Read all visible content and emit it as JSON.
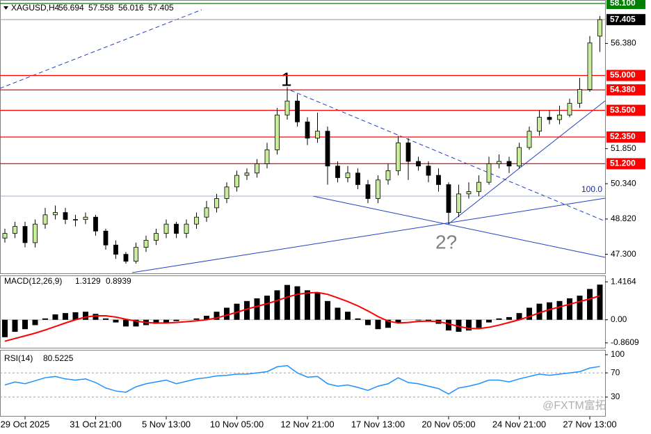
{
  "chart_data": [
    {
      "type": "candlestick",
      "title": "XAGUSD,H4",
      "open": [
        48.0,
        48.2,
        48.5,
        47.8,
        48.6,
        49.0,
        49.1,
        48.8,
        48.8,
        48.9,
        48.3,
        47.7,
        47.3,
        47.0,
        47.6,
        47.9,
        48.2,
        48.6,
        48.2,
        48.6,
        48.9,
        49.3,
        49.7,
        50.2,
        50.7,
        50.8,
        51.2,
        51.8,
        53.3,
        53.9,
        53.0,
        52.3,
        52.6,
        51.1,
        50.6,
        50.8,
        50.3,
        49.7,
        50.5,
        50.9,
        52.1,
        51.3,
        51.1,
        50.7,
        50.3,
        49.1,
        49.9,
        50.0,
        50.4,
        51.2,
        51.3,
        51.1,
        51.9,
        52.6,
        53.2,
        53.1,
        53.3,
        53.8,
        54.4,
        56.694
      ],
      "high": [
        48.4,
        48.7,
        48.7,
        48.8,
        49.3,
        49.4,
        49.3,
        49.0,
        49.1,
        49.0,
        48.4,
        47.9,
        47.4,
        47.8,
        48.1,
        48.4,
        48.8,
        48.7,
        48.8,
        49.1,
        49.6,
        49.9,
        50.4,
        50.9,
        51.0,
        51.4,
        52.1,
        53.6,
        54.5,
        54.2,
        53.2,
        53.4,
        52.8,
        51.3,
        51.1,
        51.0,
        50.5,
        50.7,
        51.2,
        52.4,
        52.3,
        51.5,
        51.3,
        51.0,
        50.4,
        50.3,
        50.4,
        50.7,
        51.5,
        51.6,
        51.5,
        52.1,
        52.8,
        53.5,
        53.5,
        53.7,
        54.0,
        54.9,
        56.7,
        57.558
      ],
      "low": [
        47.8,
        48.0,
        47.6,
        47.6,
        48.4,
        48.8,
        48.6,
        48.5,
        48.6,
        48.1,
        47.5,
        47.1,
        46.9,
        46.9,
        47.4,
        47.7,
        48.0,
        48.0,
        48.0,
        48.4,
        48.7,
        49.1,
        49.5,
        50.0,
        50.5,
        50.6,
        51.0,
        51.6,
        53.1,
        52.8,
        52.0,
        52.1,
        50.3,
        50.4,
        50.4,
        50.1,
        49.5,
        49.5,
        50.3,
        50.7,
        50.5,
        50.9,
        50.4,
        50.0,
        48.6,
        48.9,
        49.7,
        49.8,
        50.3,
        51.0,
        50.8,
        51.0,
        51.8,
        52.4,
        52.9,
        52.9,
        53.2,
        53.6,
        54.3,
        56.016
      ],
      "close": [
        48.2,
        48.5,
        47.8,
        48.6,
        49.0,
        49.1,
        48.8,
        48.8,
        48.9,
        48.3,
        47.7,
        47.3,
        47.0,
        47.6,
        47.9,
        48.2,
        48.6,
        48.2,
        48.6,
        48.9,
        49.3,
        49.7,
        50.2,
        50.7,
        50.8,
        51.2,
        51.8,
        53.3,
        53.9,
        53.0,
        52.3,
        52.6,
        51.1,
        50.6,
        50.8,
        50.3,
        49.7,
        50.5,
        50.9,
        52.1,
        51.3,
        51.1,
        50.7,
        50.3,
        49.1,
        49.9,
        50.0,
        50.4,
        51.2,
        51.3,
        51.1,
        51.9,
        52.6,
        53.2,
        53.1,
        53.3,
        53.8,
        54.4,
        56.4,
        57.405
      ],
      "up_color": "#c9ec9c",
      "down_color": "#000000",
      "ylim": [
        46.48,
        58.16
      ],
      "yticks": [
        {
          "value": 56.38,
          "label": "56.380"
        },
        {
          "value": 51.85,
          "label": "51.850"
        },
        {
          "value": 50.34,
          "label": "50.340"
        },
        {
          "value": 48.82,
          "label": "48.820"
        },
        {
          "value": 47.3,
          "label": "47.300"
        }
      ],
      "levels": [
        {
          "value": 58.1,
          "label": "58.100",
          "color": "#008000",
          "line_color": "#008000"
        },
        {
          "value": 57.405,
          "label": "57.405",
          "color": "#000000",
          "line_color": "#a0a0a0"
        },
        {
          "value": 55,
          "label": "55.000",
          "color": "#ff0000",
          "line_color": "#ff0000"
        },
        {
          "value": 54.38,
          "label": "54.380",
          "color": "#ff0000",
          "line_color": "#ff0000"
        },
        {
          "value": 53.5,
          "label": "53.500",
          "color": "#ff0000",
          "line_color": "#ff0000"
        },
        {
          "value": 52.35,
          "label": "52.350",
          "color": "#ff0000",
          "line_color": "#ff0000"
        },
        {
          "value": 51.2,
          "label": "51.200",
          "color": "#ff0000",
          "line_color": "#ff0000"
        }
      ],
      "annotations": [
        "1",
        "2?",
        "100.0"
      ]
    },
    {
      "type": "macd",
      "title": "MACD(12,26,9)",
      "histogram": [
        -0.65,
        -0.45,
        -0.35,
        -0.2,
        0.05,
        0.2,
        0.25,
        0.28,
        0.3,
        0.22,
        0.05,
        -0.1,
        -0.25,
        -0.25,
        -0.2,
        -0.15,
        -0.1,
        -0.05,
        0.0,
        0.05,
        0.15,
        0.3,
        0.45,
        0.6,
        0.7,
        0.8,
        0.9,
        1.1,
        1.3,
        1.25,
        1.1,
        1.0,
        0.7,
        0.45,
        0.3,
        0.05,
        -0.2,
        -0.35,
        -0.3,
        -0.1,
        0.0,
        -0.02,
        -0.05,
        -0.15,
        -0.4,
        -0.45,
        -0.4,
        -0.3,
        -0.1,
        0.05,
        0.1,
        0.25,
        0.45,
        0.6,
        0.65,
        0.7,
        0.8,
        0.9,
        1.15,
        1.3129
      ],
      "signal": [
        -0.8,
        -0.7,
        -0.6,
        -0.5,
        -0.38,
        -0.25,
        -0.12,
        0.0,
        0.1,
        0.15,
        0.15,
        0.1,
        0.02,
        -0.05,
        -0.1,
        -0.12,
        -0.12,
        -0.1,
        -0.07,
        -0.04,
        0.0,
        0.07,
        0.17,
        0.28,
        0.4,
        0.5,
        0.6,
        0.72,
        0.85,
        0.95,
        1.0,
        1.02,
        0.95,
        0.82,
        0.68,
        0.52,
        0.33,
        0.12,
        -0.05,
        -0.12,
        -0.1,
        -0.06,
        -0.05,
        -0.07,
        -0.15,
        -0.25,
        -0.32,
        -0.33,
        -0.28,
        -0.2,
        -0.1,
        0.0,
        0.12,
        0.26,
        0.38,
        0.48,
        0.58,
        0.68,
        0.78,
        0.8939
      ],
      "histogram_color": "#000000",
      "signal_color": "#ff0000",
      "ylim": [
        -1.045,
        1.63
      ],
      "yticks": [
        1.4164,
        {
          "value": 0,
          "label": "0.00"
        },
        -0.8609
      ]
    },
    {
      "type": "line",
      "title": "RSI(14)",
      "values": [
        50,
        55,
        52,
        57,
        62,
        64,
        60,
        58,
        60,
        54,
        45,
        40,
        38,
        47,
        52,
        55,
        58,
        52,
        56,
        60,
        62,
        65,
        66,
        68,
        68,
        70,
        72,
        80,
        82,
        70,
        63,
        64,
        52,
        48,
        50,
        46,
        41,
        48,
        52,
        62,
        54,
        52,
        48,
        44,
        35,
        45,
        48,
        52,
        58,
        58,
        55,
        60,
        64,
        68,
        66,
        68,
        70,
        72,
        78,
        80.5225
      ],
      "color": "#1e90ff",
      "ylim": [
        0,
        100
      ],
      "yticks": [
        100,
        70,
        30
      ],
      "categories": [
        null,
        null,
        "29 Oct 2025",
        null,
        null,
        null,
        null,
        null,
        null,
        "31 Oct 21:00",
        null,
        null,
        null,
        null,
        null,
        null,
        "5 Nov 13:00",
        null,
        null,
        null,
        null,
        null,
        null,
        "10 Nov 05:00",
        null,
        null,
        null,
        null,
        null,
        null,
        "12 Nov 21:00",
        null,
        null,
        null,
        null,
        null,
        null,
        "17 Nov 13:00",
        null,
        null,
        null,
        null,
        null,
        null,
        "20 Nov 05:00",
        null,
        null,
        null,
        null,
        null,
        null,
        "24 Nov 21:00",
        null,
        null,
        null,
        null,
        null,
        null,
        "27 Nov 13:00",
        null
      ]
    }
  ],
  "watermark": "@FXTM富拓"
}
